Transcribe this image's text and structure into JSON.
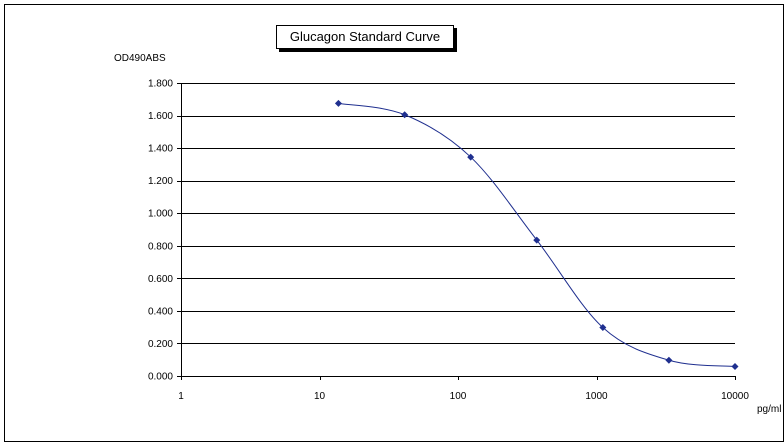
{
  "chart_data": {
    "type": "scatter",
    "title": "Glucagon Standard Curve",
    "ylabel": "OD490ABS",
    "xlabel": "pg/ml",
    "x_scale": "log",
    "xlim": [
      1,
      10000
    ],
    "ylim": [
      0,
      1.8
    ],
    "x_ticks": [
      1,
      10,
      100,
      1000,
      10000
    ],
    "x_tick_labels": [
      "1",
      "10",
      "100",
      "1000",
      "10000"
    ],
    "y_ticks": [
      0,
      0.2,
      0.4,
      0.6,
      0.8,
      1.0,
      1.2,
      1.4,
      1.6,
      1.8
    ],
    "y_tick_labels": [
      "0.000",
      "0.200",
      "0.400",
      "0.600",
      "0.800",
      "1.000",
      "1.200",
      "1.400",
      "1.600",
      "1.800"
    ],
    "grid": true,
    "series": [
      {
        "color": "#1f2f8f",
        "x": [
          13.7,
          41.2,
          123.5,
          370.4,
          1111,
          3333,
          10000
        ],
        "y": [
          1.675,
          1.605,
          1.345,
          0.835,
          0.298,
          0.097,
          0.058
        ]
      }
    ]
  }
}
